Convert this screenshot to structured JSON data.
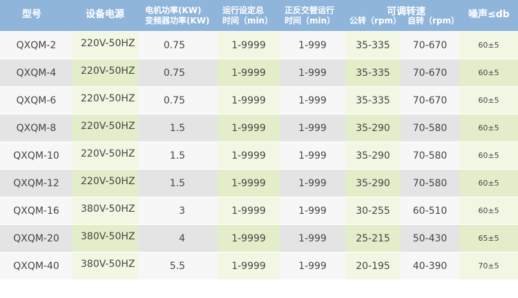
{
  "table": {
    "header": [
      {
        "lines": [
          "型号"
        ]
      },
      {
        "lines": [
          "设备电源"
        ]
      },
      {
        "lines": [
          "电机功率(KW)",
          "变频器功率(KW)"
        ]
      },
      {
        "lines": [
          "运行设定总",
          "时间（min）"
        ]
      },
      {
        "lines": [
          "正反交替运行",
          "时间（min）"
        ]
      },
      {
        "lines": [
          "可调转速",
          "公转（rpm）",
          "自转（rpm）"
        ]
      },
      {
        "lines": [
          "噪声≤db"
        ]
      }
    ],
    "rows": [
      [
        "QXQM-2",
        "220V-50HZ",
        "0.75",
        "1-9999",
        "1-999",
        "35-335",
        "70-670",
        "60±5"
      ],
      [
        "QXQM-4",
        "220V-50HZ",
        "0.75",
        "1-9999",
        "1-999",
        "35-335",
        "70-670",
        "60±5"
      ],
      [
        "QXQM-6",
        "220V-50HZ",
        "0.75",
        "1-9999",
        "1-999",
        "35-335",
        "70-670",
        "60±5"
      ],
      [
        "QXQM-8",
        "220V-50HZ",
        "1.5",
        "1-9999",
        "1-999",
        "35-290",
        "70-580",
        "60±5"
      ],
      [
        "QXQM-10",
        "220V-50HZ",
        "1.5",
        "1-9999",
        "1-999",
        "35-290",
        "70-580",
        "60±5"
      ],
      [
        "QXQM-12",
        "220V-50HZ",
        "1.5",
        "1-9999",
        "1-999",
        "35-290",
        "70-580",
        "60±5"
      ],
      [
        "QXQM-16",
        "380V-50HZ",
        "3",
        "1-9999",
        "1-999",
        "30-255",
        "60-510",
        "60±5"
      ],
      [
        "QXQM-20",
        "380V-50HZ",
        "4",
        "1-9999",
        "1-999",
        "25-215",
        "50-430",
        "65±5"
      ],
      [
        "QXQM-40",
        "380V-50HZ",
        "5.5",
        "1-9999",
        "1-999",
        "20-195",
        "40-390",
        "70±5"
      ]
    ]
  }
}
